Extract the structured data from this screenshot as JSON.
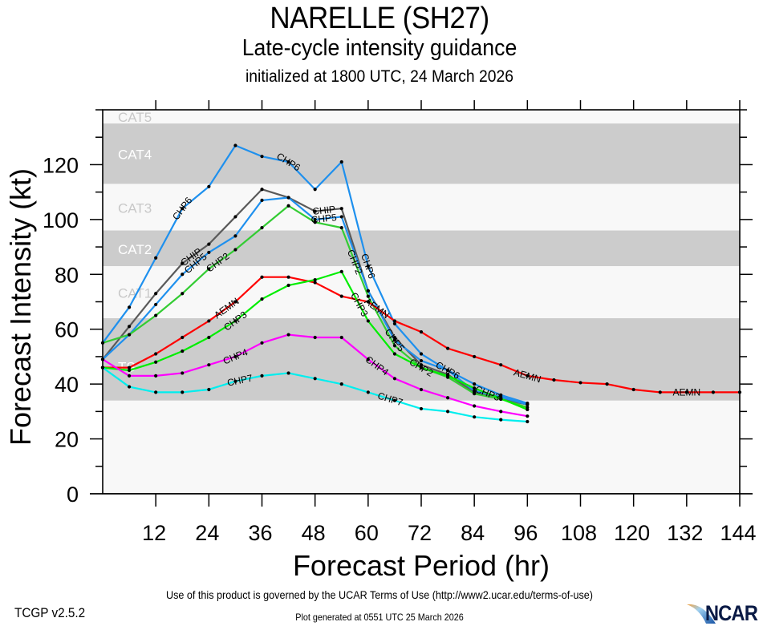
{
  "header": {
    "title": "NARELLE (SH27)",
    "subtitle": "Late-cycle intensity guidance",
    "init_line": "initialized at 1800 UTC, 24 March 2026"
  },
  "footer": {
    "terms": "Use of this product is governed by the UCAR Terms of Use (http://www2.ucar.edu/terms-of-use)",
    "version": "TCGP v2.5.2",
    "generated": "Plot generated at 0551 UTC   25 March 2026",
    "logo_text": "NCAR"
  },
  "chart_data": {
    "type": "line",
    "title": "NARELLE (SH27)",
    "subtitle": "Late-cycle intensity guidance",
    "xlabel": "Forecast Period (hr)",
    "ylabel": "Forecast Intensity (kt)",
    "xlim": [
      0,
      144
    ],
    "ylim": [
      0,
      140
    ],
    "xticks": [
      12,
      24,
      36,
      48,
      60,
      72,
      84,
      96,
      108,
      120,
      132,
      144
    ],
    "yticks": [
      0,
      20,
      40,
      60,
      80,
      100,
      120
    ],
    "yminor_step": 10,
    "grid": false,
    "legend": "inline-labels",
    "bands": [
      {
        "label": "TS",
        "from": 34,
        "to": 64,
        "shaded": true
      },
      {
        "label": "CAT1",
        "from": 64,
        "to": 83,
        "shaded": false
      },
      {
        "label": "CAT2",
        "from": 83,
        "to": 96,
        "shaded": true
      },
      {
        "label": "CAT3",
        "from": 96,
        "to": 113,
        "shaded": false
      },
      {
        "label": "CAT4",
        "from": 113,
        "to": 135,
        "shaded": true
      },
      {
        "label": "CAT5",
        "from": 135,
        "to": 140,
        "shaded": false
      }
    ],
    "band_colors": {
      "shaded": "#cccccc",
      "unshaded": "#f8f8f8",
      "shaded_label": "#ffffff",
      "unshaded_label": "#c8c8c8"
    },
    "series": [
      {
        "name": "CHP6",
        "color": "#1e90ee",
        "x": [
          0,
          6,
          12,
          18,
          24,
          30,
          36,
          42,
          48,
          54,
          60,
          66,
          72,
          78,
          84,
          90,
          96
        ],
        "values": [
          55,
          68,
          86,
          104,
          112,
          127,
          123,
          121,
          111,
          121,
          83,
          62,
          51,
          45,
          40,
          36,
          33
        ],
        "label_at": [
          18,
          42,
          60,
          78
        ]
      },
      {
        "name": "CHIP",
        "color": "#5a5a5a",
        "x": [
          0,
          6,
          12,
          18,
          24,
          30,
          36,
          42,
          48,
          54,
          60,
          66,
          72,
          78,
          84,
          90,
          96
        ],
        "values": [
          49,
          61,
          73,
          84,
          91,
          101,
          111,
          108,
          103,
          104,
          74,
          57,
          47,
          43.5,
          37,
          34.5,
          32.5
        ],
        "label_at": [
          20,
          50
        ]
      },
      {
        "name": "CHP5",
        "color": "#1e90ee",
        "x": [
          0,
          6,
          12,
          18,
          24,
          30,
          36,
          42,
          48,
          54,
          60,
          66,
          72,
          78,
          84,
          90,
          96
        ],
        "values": [
          49,
          58,
          69,
          80,
          88,
          94,
          107,
          108,
          100,
          101,
          74,
          56,
          48.5,
          45,
          37.5,
          35.3,
          32.5
        ],
        "label_at": [
          21,
          50,
          66
        ]
      },
      {
        "name": "CHP2",
        "color": "#33cc33",
        "x": [
          0,
          6,
          12,
          18,
          24,
          30,
          36,
          42,
          48,
          54,
          60,
          66,
          72,
          78,
          84,
          90,
          96
        ],
        "values": [
          55,
          58,
          65,
          73,
          82,
          89,
          97,
          105,
          99,
          97,
          72,
          54,
          46,
          42.5,
          36.5,
          34.5,
          31.5
        ],
        "label_at": [
          26,
          57,
          72
        ]
      },
      {
        "name": "AEMN",
        "color": "#ff0000",
        "x": [
          0,
          6,
          12,
          18,
          24,
          30,
          36,
          42,
          48,
          54,
          60,
          66,
          72,
          78,
          84,
          90,
          96,
          102,
          108,
          114,
          120,
          126,
          132,
          138,
          144
        ],
        "values": [
          46,
          46,
          51,
          57,
          63,
          70,
          79,
          79,
          77,
          72,
          70,
          63,
          59,
          53,
          50,
          47,
          43,
          41.5,
          40.5,
          40,
          38,
          37,
          37,
          37,
          37
        ],
        "label_at": [
          28,
          62,
          96,
          132
        ]
      },
      {
        "name": "CHP3",
        "color": "#00ee00",
        "x": [
          0,
          6,
          12,
          18,
          24,
          30,
          36,
          42,
          48,
          54,
          60,
          66,
          72,
          78,
          84,
          90,
          96
        ],
        "values": [
          46,
          45,
          48,
          52,
          57,
          63,
          71,
          76,
          78,
          81,
          63,
          51,
          46,
          43,
          38.5,
          34.7,
          30.7
        ],
        "label_at": [
          30,
          58,
          87
        ]
      },
      {
        "name": "CHP4",
        "color": "#ff00ff",
        "x": [
          0,
          6,
          12,
          18,
          24,
          30,
          36,
          42,
          48,
          54,
          60,
          66,
          72,
          78,
          84,
          90,
          96
        ],
        "values": [
          49,
          43,
          43,
          44,
          47,
          50,
          55,
          58,
          57,
          57,
          49,
          42,
          38,
          35,
          32,
          30,
          28.3
        ],
        "label_at": [
          30,
          62
        ]
      },
      {
        "name": "CHP7",
        "color": "#00eeee",
        "x": [
          0,
          6,
          12,
          18,
          24,
          30,
          36,
          42,
          48,
          54,
          60,
          66,
          72,
          78,
          84,
          90,
          96
        ],
        "values": [
          46,
          39,
          37,
          37,
          38,
          41,
          43,
          44,
          42,
          40,
          37,
          34,
          31,
          30,
          28,
          27,
          26.3
        ],
        "label_at": [
          31,
          65
        ]
      }
    ]
  }
}
